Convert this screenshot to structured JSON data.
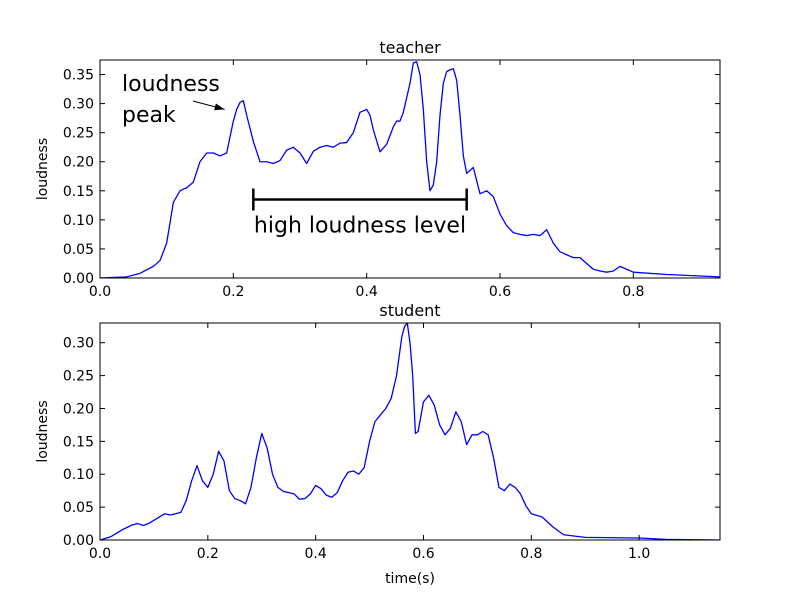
{
  "chart_data": [
    {
      "type": "line",
      "title": "teacher",
      "xlabel": "",
      "ylabel": "loudness",
      "xlim": [
        0.0,
        0.93
      ],
      "ylim": [
        0.0,
        0.375
      ],
      "xticks": [
        "0.0",
        "0.2",
        "0.4",
        "0.6",
        "0.8"
      ],
      "yticks": [
        "0.00",
        "0.05",
        "0.10",
        "0.15",
        "0.20",
        "0.25",
        "0.30",
        "0.35"
      ],
      "series_color": "#0000ff",
      "x": [
        0.0,
        0.04,
        0.06,
        0.08,
        0.09,
        0.1,
        0.11,
        0.12,
        0.125,
        0.13,
        0.14,
        0.15,
        0.16,
        0.17,
        0.18,
        0.19,
        0.2,
        0.205,
        0.21,
        0.215,
        0.22,
        0.23,
        0.24,
        0.25,
        0.26,
        0.27,
        0.28,
        0.29,
        0.3,
        0.31,
        0.32,
        0.33,
        0.34,
        0.35,
        0.36,
        0.37,
        0.38,
        0.39,
        0.4,
        0.405,
        0.41,
        0.42,
        0.43,
        0.44,
        0.445,
        0.45,
        0.455,
        0.46,
        0.465,
        0.47,
        0.475,
        0.48,
        0.485,
        0.49,
        0.495,
        0.5,
        0.505,
        0.51,
        0.515,
        0.52,
        0.525,
        0.53,
        0.535,
        0.54,
        0.545,
        0.55,
        0.56,
        0.57,
        0.58,
        0.59,
        0.6,
        0.61,
        0.62,
        0.63,
        0.64,
        0.65,
        0.66,
        0.67,
        0.68,
        0.69,
        0.7,
        0.71,
        0.72,
        0.73,
        0.74,
        0.75,
        0.76,
        0.77,
        0.78,
        0.79,
        0.8,
        0.85,
        0.93
      ],
      "y": [
        0.0,
        0.002,
        0.008,
        0.02,
        0.03,
        0.06,
        0.13,
        0.15,
        0.153,
        0.155,
        0.165,
        0.2,
        0.215,
        0.215,
        0.21,
        0.215,
        0.27,
        0.29,
        0.302,
        0.305,
        0.28,
        0.235,
        0.2,
        0.2,
        0.197,
        0.202,
        0.22,
        0.225,
        0.215,
        0.197,
        0.218,
        0.225,
        0.228,
        0.225,
        0.232,
        0.233,
        0.25,
        0.285,
        0.29,
        0.28,
        0.255,
        0.217,
        0.23,
        0.26,
        0.27,
        0.27,
        0.285,
        0.31,
        0.335,
        0.37,
        0.372,
        0.35,
        0.29,
        0.2,
        0.15,
        0.16,
        0.2,
        0.28,
        0.335,
        0.355,
        0.358,
        0.36,
        0.34,
        0.28,
        0.21,
        0.18,
        0.19,
        0.145,
        0.15,
        0.14,
        0.11,
        0.09,
        0.078,
        0.075,
        0.073,
        0.075,
        0.073,
        0.083,
        0.06,
        0.045,
        0.04,
        0.035,
        0.035,
        0.025,
        0.015,
        0.012,
        0.01,
        0.012,
        0.02,
        0.015,
        0.01,
        0.006,
        0.002
      ]
    },
    {
      "type": "line",
      "title": "student",
      "xlabel": "time(s)",
      "ylabel": "loudness",
      "xlim": [
        0.0,
        1.15
      ],
      "ylim": [
        0.0,
        0.33
      ],
      "xticks": [
        "0.0",
        "0.2",
        "0.4",
        "0.6",
        "0.8",
        "1.0"
      ],
      "yticks": [
        "0.00",
        "0.05",
        "0.10",
        "0.15",
        "0.20",
        "0.25",
        "0.30"
      ],
      "series_color": "#0000ff",
      "x": [
        0.0,
        0.02,
        0.04,
        0.06,
        0.07,
        0.08,
        0.09,
        0.1,
        0.12,
        0.13,
        0.14,
        0.15,
        0.16,
        0.17,
        0.18,
        0.19,
        0.2,
        0.21,
        0.22,
        0.23,
        0.24,
        0.25,
        0.26,
        0.27,
        0.28,
        0.29,
        0.3,
        0.31,
        0.32,
        0.33,
        0.34,
        0.35,
        0.36,
        0.37,
        0.38,
        0.39,
        0.4,
        0.41,
        0.42,
        0.43,
        0.44,
        0.45,
        0.46,
        0.47,
        0.48,
        0.49,
        0.5,
        0.51,
        0.52,
        0.53,
        0.54,
        0.55,
        0.56,
        0.565,
        0.57,
        0.575,
        0.58,
        0.585,
        0.59,
        0.6,
        0.61,
        0.62,
        0.63,
        0.64,
        0.65,
        0.66,
        0.67,
        0.68,
        0.69,
        0.7,
        0.71,
        0.72,
        0.73,
        0.74,
        0.75,
        0.76,
        0.77,
        0.78,
        0.79,
        0.8,
        0.82,
        0.84,
        0.86,
        0.9,
        1.0,
        1.05,
        1.15
      ],
      "y": [
        0.0,
        0.005,
        0.015,
        0.023,
        0.025,
        0.022,
        0.025,
        0.03,
        0.04,
        0.038,
        0.04,
        0.042,
        0.06,
        0.09,
        0.113,
        0.09,
        0.08,
        0.1,
        0.135,
        0.12,
        0.075,
        0.063,
        0.06,
        0.055,
        0.08,
        0.125,
        0.162,
        0.14,
        0.1,
        0.08,
        0.074,
        0.072,
        0.07,
        0.062,
        0.063,
        0.07,
        0.083,
        0.078,
        0.068,
        0.065,
        0.072,
        0.09,
        0.103,
        0.105,
        0.1,
        0.11,
        0.15,
        0.18,
        0.19,
        0.2,
        0.215,
        0.25,
        0.31,
        0.325,
        0.33,
        0.3,
        0.25,
        0.162,
        0.165,
        0.21,
        0.22,
        0.205,
        0.175,
        0.16,
        0.17,
        0.195,
        0.18,
        0.145,
        0.16,
        0.16,
        0.165,
        0.16,
        0.125,
        0.08,
        0.075,
        0.085,
        0.08,
        0.07,
        0.052,
        0.04,
        0.035,
        0.02,
        0.008,
        0.004,
        0.003,
        0.001,
        0.0
      ]
    }
  ],
  "annotations": {
    "peak_label": [
      "loudness",
      "peak"
    ],
    "range_label": "high loudness level",
    "peak_point": [
      0.19,
      0.29
    ],
    "range_bracket": {
      "x_start": 0.23,
      "x_end": 0.55,
      "y": 0.135
    }
  }
}
